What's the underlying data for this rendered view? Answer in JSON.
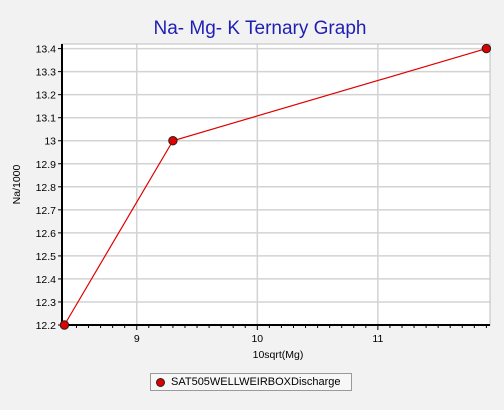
{
  "chart_data": {
    "type": "line",
    "title": "Na- Mg- K Ternary Graph",
    "xlabel": "10sqrt(Mg)",
    "ylabel": "Na/1000",
    "xlim": [
      8.38,
      11.93
    ],
    "ylim": [
      12.2,
      13.42
    ],
    "x_ticks": [
      "9",
      "10",
      "11"
    ],
    "x_tick_values": [
      9,
      10,
      11
    ],
    "y_ticks": [
      "12.2",
      "12.3",
      "12.4",
      "12.5",
      "12.6",
      "12.7",
      "12.8",
      "12.9",
      "13",
      "13.1",
      "13.2",
      "13.3",
      "13.4"
    ],
    "y_tick_values": [
      12.2,
      12.3,
      12.4,
      12.5,
      12.6,
      12.7,
      12.8,
      12.9,
      13.0,
      13.1,
      13.2,
      13.3,
      13.4
    ],
    "grid": true,
    "legend_position": "bottom",
    "series": [
      {
        "name": "SAT505WELLWEIRBOXDischarge",
        "color": "#e00000",
        "marker_color": "#e00000",
        "x": [
          8.4,
          9.3,
          11.9
        ],
        "y": [
          12.2,
          13.0,
          13.4
        ]
      }
    ],
    "colors": {
      "title": "#1f1fb4",
      "background": "#f2f2f2",
      "plot_background": "#ffffff",
      "grid": "#d3d3d3",
      "axis": "#000000"
    }
  }
}
